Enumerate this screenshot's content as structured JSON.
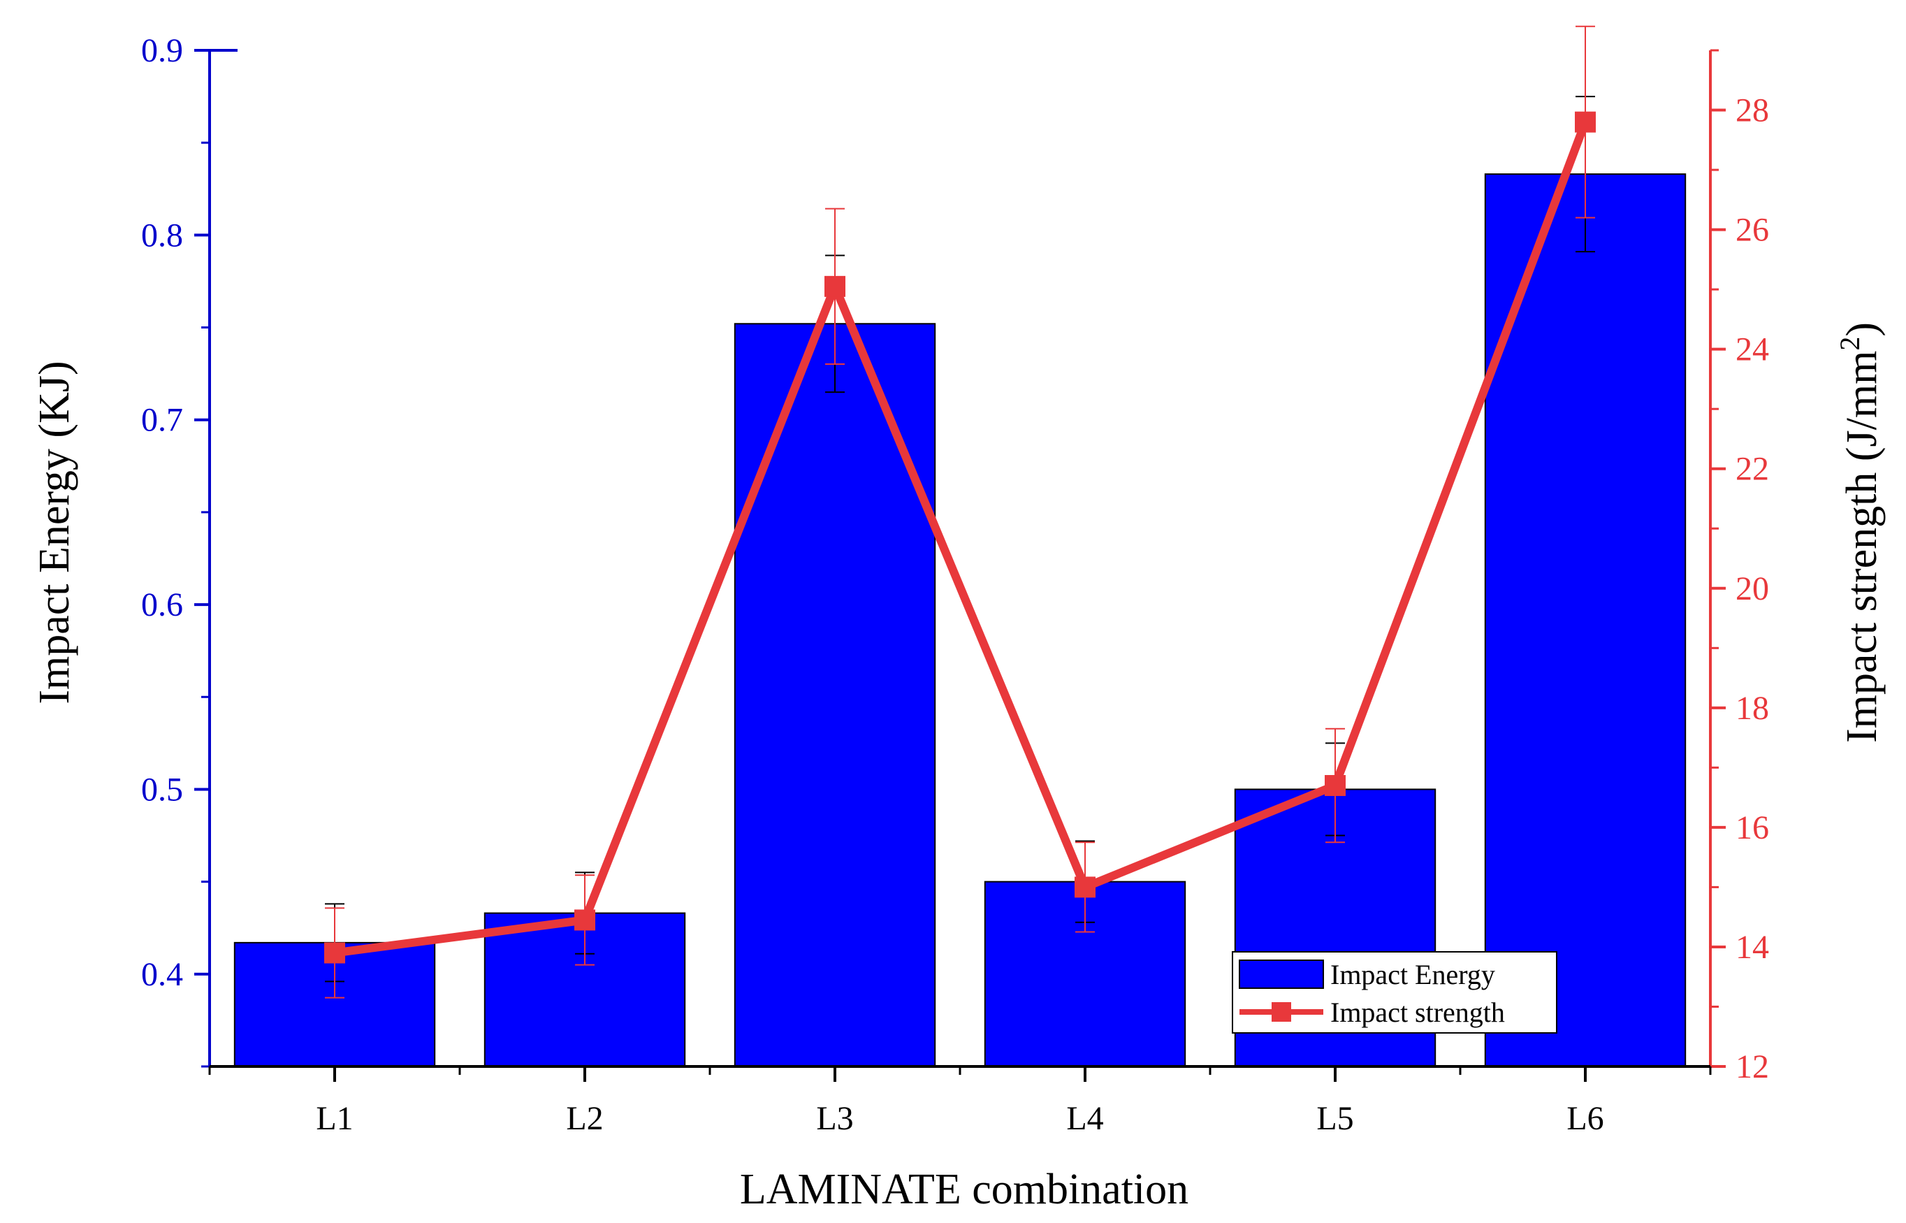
{
  "chart_data": {
    "type": "bar+line",
    "categories": [
      "L1",
      "L2",
      "L3",
      "L4",
      "L5",
      "L6"
    ],
    "series": [
      {
        "name": "Impact Energy",
        "kind": "bar",
        "axis": "left",
        "values": [
          0.417,
          0.433,
          0.752,
          0.45,
          0.5,
          0.833
        ],
        "errors": [
          0.021,
          0.022,
          0.037,
          0.022,
          0.025,
          0.042
        ],
        "color": "#0000FF"
      },
      {
        "name": "Impact strength",
        "kind": "line",
        "axis": "right",
        "values": [
          13.9,
          14.45,
          25.05,
          15.0,
          16.7,
          27.8
        ],
        "errors": [
          0.75,
          0.75,
          1.3,
          0.75,
          0.95,
          1.6
        ],
        "color": "#E8383B"
      }
    ],
    "xlabel": "LAMINATE combination",
    "ylabel_left": "Impact Energy (KJ)",
    "ylabel_right_main": "Impact strength (J/mm",
    "ylabel_right_sup": "2",
    "ylabel_right_close": ")",
    "ylim_left": [
      0.35,
      0.9
    ],
    "ylim_right": [
      12,
      29
    ],
    "yticks_left": [
      "0.4",
      "0.5",
      "0.6",
      "0.7",
      "0.8",
      "0.9"
    ],
    "yticks_right": [
      "12",
      "14",
      "16",
      "18",
      "20",
      "22",
      "24",
      "26",
      "28"
    ],
    "legend": {
      "position": "bottom-right",
      "items": [
        "Impact Energy",
        "Impact strength"
      ]
    },
    "colors": {
      "left_axis": "#0000CC",
      "right_axis": "#E8383B",
      "bar": "#0000FF",
      "line": "#E8383B"
    }
  }
}
